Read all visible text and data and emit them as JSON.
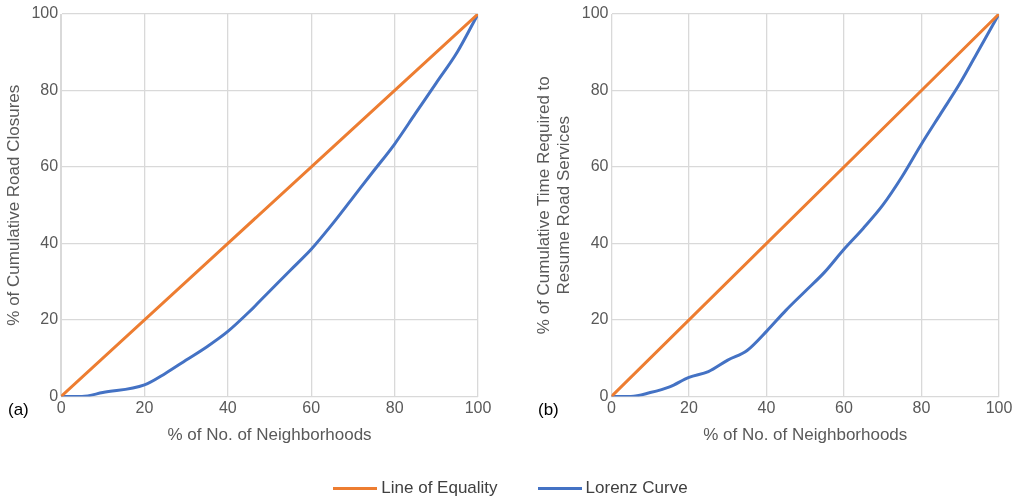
{
  "chart_data": [
    {
      "type": "line",
      "xlabel": "% of No. of Neighborhoods",
      "ylabel": "% of Cumulative Road Closures",
      "xlim": [
        0,
        100
      ],
      "ylim": [
        0,
        100
      ],
      "xticks": [
        0,
        20,
        40,
        60,
        80,
        100
      ],
      "yticks": [
        0,
        20,
        40,
        60,
        80,
        100
      ],
      "grid": true,
      "legend": "bottom",
      "marker": "none",
      "line_style": "solid",
      "annotations": [
        "(a)"
      ],
      "series": [
        {
          "name": "Line of Equality",
          "color": "#ed7d31",
          "x": [
            0,
            100
          ],
          "values": [
            0,
            100
          ]
        },
        {
          "name": "Lorenz Curve",
          "color": "#4472c4",
          "x": [
            0,
            5,
            10,
            20,
            25,
            30,
            35,
            40,
            45,
            50,
            55,
            60,
            65,
            70,
            75,
            80,
            85,
            90,
            95,
            100
          ],
          "values": [
            0,
            0,
            1,
            3,
            6,
            9.5,
            13,
            17,
            22,
            27.5,
            33,
            38.5,
            45,
            52,
            59,
            66,
            74,
            82,
            90,
            100
          ]
        }
      ]
    },
    {
      "type": "line",
      "xlabel": "% of No. of Neighborhoods",
      "ylabel": "% of Cumulative Time Required to Resume Road Services",
      "xlim": [
        0,
        100
      ],
      "ylim": [
        0,
        100
      ],
      "xticks": [
        0,
        20,
        40,
        60,
        80,
        100
      ],
      "yticks": [
        0,
        20,
        40,
        60,
        80,
        100
      ],
      "grid": true,
      "legend": "bottom",
      "marker": "none",
      "line_style": "solid",
      "annotations": [
        "(b)"
      ],
      "series": [
        {
          "name": "Line of Equality",
          "color": "#ed7d31",
          "x": [
            0,
            100
          ],
          "values": [
            0,
            100
          ]
        },
        {
          "name": "Lorenz Curve",
          "color": "#4472c4",
          "x": [
            0,
            5,
            10,
            15,
            20,
            25,
            30,
            35,
            40,
            45,
            50,
            55,
            60,
            65,
            70,
            75,
            80,
            85,
            90,
            95,
            100
          ],
          "values": [
            0,
            0,
            1,
            2.5,
            5,
            6.5,
            9.5,
            12,
            17,
            22.5,
            27.5,
            32.5,
            38.5,
            44,
            50,
            57.5,
            66,
            74,
            82,
            91,
            100
          ]
        }
      ]
    }
  ]
}
